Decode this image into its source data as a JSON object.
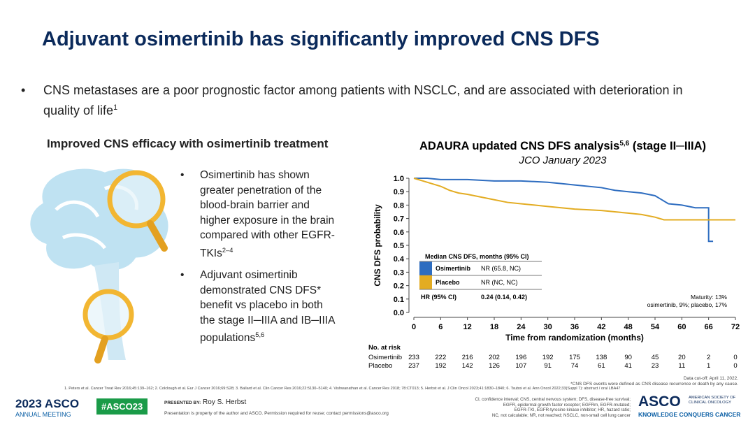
{
  "title": "Adjuvant osimertinib has significantly improved CNS DFS",
  "intro": {
    "text": "CNS metastases are a poor prognostic factor among patients with NSCLC, and are associated with deterioration in quality of life",
    "sup": "1"
  },
  "left": {
    "heading": "Improved CNS efficacy with osimertinib treatment",
    "bullets": [
      {
        "text": "Osimertinib has shown greater penetration of the blood-brain barrier and higher exposure in the brain compared with other EGFR-TKIs",
        "sup": "2–4"
      },
      {
        "text": "Adjuvant osimertinib demonstrated CNS DFS* benefit vs placebo in both the stage II─IIIA and IB─IIIA populations",
        "sup": "5,6"
      }
    ]
  },
  "chart_data": {
    "type": "line",
    "title": "ADAURA updated CNS DFS analysis",
    "title_sup": "5,6",
    "title_suffix": " (stage II─IIIA)",
    "subtitle": "JCO January 2023",
    "x_label": "Time from randomization (months)",
    "y_label": "CNS DFS probability",
    "xlim": [
      0,
      72
    ],
    "xticks": [
      0,
      6,
      12,
      18,
      24,
      30,
      36,
      42,
      48,
      54,
      60,
      66,
      72
    ],
    "ylim": [
      0,
      1
    ],
    "yticks": [
      {
        "value": 0,
        "label": "0.0"
      },
      0.1,
      0.2,
      0.3,
      0.4,
      0.5,
      0.6,
      0.7,
      0.8,
      0.9,
      {
        "value": 1,
        "label": "1.0"
      }
    ],
    "series": [
      {
        "name": "Osimertinib",
        "color": "#2e6dc0",
        "x": [
          0,
          3,
          6,
          12,
          18,
          24,
          30,
          33,
          36,
          42,
          45,
          48,
          51,
          54,
          55,
          57,
          60,
          63,
          66,
          66,
          67
        ],
        "values": [
          1,
          1,
          0.99,
          0.99,
          0.98,
          0.98,
          0.97,
          0.96,
          0.95,
          0.93,
          0.91,
          0.9,
          0.89,
          0.87,
          0.85,
          0.81,
          0.8,
          0.78,
          0.78,
          0.53,
          0.53
        ]
      },
      {
        "name": "Placebo",
        "color": "#e3ac22",
        "x": [
          0,
          2,
          4,
          6,
          8,
          10,
          12,
          15,
          18,
          21,
          24,
          27,
          30,
          33,
          36,
          42,
          45,
          48,
          51,
          54,
          56,
          60,
          72
        ],
        "values": [
          1,
          0.98,
          0.96,
          0.94,
          0.91,
          0.89,
          0.88,
          0.86,
          0.84,
          0.82,
          0.81,
          0.8,
          0.79,
          0.78,
          0.77,
          0.76,
          0.75,
          0.74,
          0.73,
          0.71,
          0.69,
          0.69,
          0.69
        ]
      }
    ],
    "median_table": {
      "header": "Median CNS DFS, months (95% CI)",
      "rows": [
        {
          "name": "Osimertinib",
          "value": "NR (65.8, NC)"
        },
        {
          "name": "Placebo",
          "value": "NR (NC, NC)"
        }
      ],
      "hr": {
        "name": "HR (95% CI)",
        "value": "0.24 (0.14, 0.42)"
      }
    },
    "maturity": [
      "Maturity: 13%",
      "osimertinib, 9%; placebo, 17%"
    ],
    "risk_table": {
      "title": "No. at risk",
      "rows": [
        {
          "name": "Osimertinib",
          "values": [
            233,
            222,
            216,
            202,
            196,
            192,
            175,
            138,
            90,
            45,
            20,
            2,
            0
          ]
        },
        {
          "name": "Placebo",
          "values": [
            237,
            192,
            142,
            126,
            107,
            91,
            74,
            61,
            41,
            23,
            11,
            1,
            0
          ]
        }
      ]
    }
  },
  "footer": {
    "cutoff": "Data cut-off: April 11, 2022.",
    "footnote": "*CNS DFS events were defined as CNS disease recurrence or death by any cause.",
    "refs": "1. Peters et al. Cancer Treat Rev 2016;45:139–162; 2. Colclough et al. Eur J Cancer 2016;69:S28; 3. Ballard et al. Clin Cancer Res 2016;22:5130–5140; 4. Vishwanathan et al. Cancer Res 2018; 78:CT013; 5. Herbst et al. J Clin Oncol 2023;41:1830–1840; 6. Tsuboi et al. Ann Oncol 2022;33(Suppl 7): abstract / oral LBA47",
    "meeting_year": "2023",
    "meeting_brand": "ASCO",
    "meeting_sub": "ANNUAL MEETING",
    "hashtag": "#ASCO23",
    "presented_by": "PRESENTED BY:",
    "presenter": "Roy S. Herbst",
    "notice": "Presentation is property of the author and ASCO. Permission required for reuse; contact permissions@asco.org",
    "abbreviations": [
      "CI, confidence interval; CNS, central nervous system; DFS, disease-free survival;",
      "EGFR, epidermal growth factor receptor; EGFRm, EGFR-mutated;",
      "EGFR-TKI, EGFR-tyrosine kinase inhibitor; HR, hazard ratio;",
      "NC, not calculable; NR, not reached; NSCLC, non-small cell lung cancer"
    ],
    "asco": "ASCO",
    "society1": "AMERICAN SOCIETY OF",
    "society2": "CLINICAL ONCOLOGY",
    "tagline": "KNOWLEDGE CONQUERS CANCER"
  }
}
